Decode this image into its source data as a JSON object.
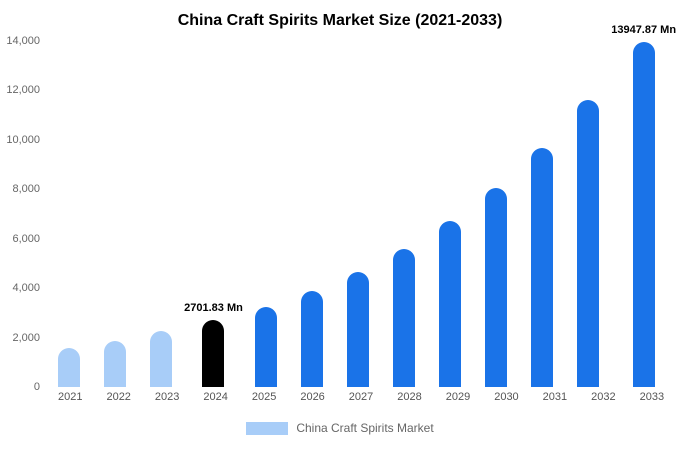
{
  "chart_data": {
    "type": "bar",
    "title": "China Craft Spirits Market Size (2021-2033)",
    "categories": [
      "2021",
      "2022",
      "2023",
      "2024",
      "2025",
      "2026",
      "2027",
      "2028",
      "2029",
      "2030",
      "2031",
      "2032",
      "2033"
    ],
    "values": [
      1560,
      1880,
      2250,
      2701.83,
      3240,
      3890,
      4670,
      5600,
      6720,
      8070,
      9680,
      11620,
      13947.87
    ],
    "bar_colors": [
      "#a8cdf8",
      "#a8cdf8",
      "#a8cdf8",
      "#000000",
      "#1a73e8",
      "#1a73e8",
      "#1a73e8",
      "#1a73e8",
      "#1a73e8",
      "#1a73e8",
      "#1a73e8",
      "#1a73e8",
      "#1a73e8"
    ],
    "ylim": [
      0,
      14000
    ],
    "ytick_step": 2000,
    "grid": false,
    "legend_position": "bottom",
    "annotations": [
      {
        "category": "2024",
        "text": "2701.83 Mn"
      },
      {
        "category": "2033",
        "text": "13947.87 Mn"
      }
    ],
    "legend": [
      {
        "label": "China Craft Spirits Market",
        "color": "#a8cdf8"
      }
    ]
  },
  "colors": {
    "primary_blue": "#1a73e8",
    "light_blue": "#a8cdf8",
    "highlight_black": "#000000",
    "axis_text": "#666666"
  }
}
